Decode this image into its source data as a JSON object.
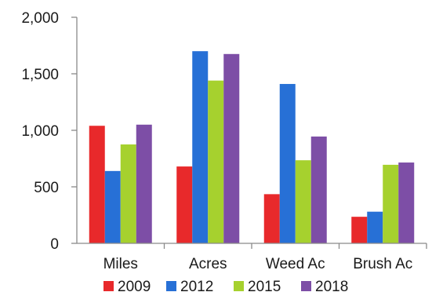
{
  "chart_data": {
    "type": "bar",
    "categories": [
      "Miles",
      "Acres",
      "Weed Ac",
      "Brush Ac"
    ],
    "series": [
      {
        "name": "2009",
        "color": "#e8292b",
        "values": [
          1040,
          680,
          435,
          235
        ]
      },
      {
        "name": "2012",
        "color": "#2770d6",
        "values": [
          640,
          1700,
          1410,
          280
        ]
      },
      {
        "name": "2015",
        "color": "#a6d12e",
        "values": [
          875,
          1440,
          735,
          695
        ]
      },
      {
        "name": "2018",
        "color": "#7d4ea6",
        "values": [
          1050,
          1675,
          945,
          715
        ]
      }
    ],
    "yticks": [
      "0",
      "500",
      "1,000",
      "1,500",
      "2,000"
    ],
    "ytick_values": [
      0,
      500,
      1000,
      1500,
      2000
    ],
    "ylim": [
      0,
      2000
    ],
    "grid": false,
    "legend_position": "bottom",
    "title": "",
    "xlabel": "",
    "ylabel": ""
  }
}
